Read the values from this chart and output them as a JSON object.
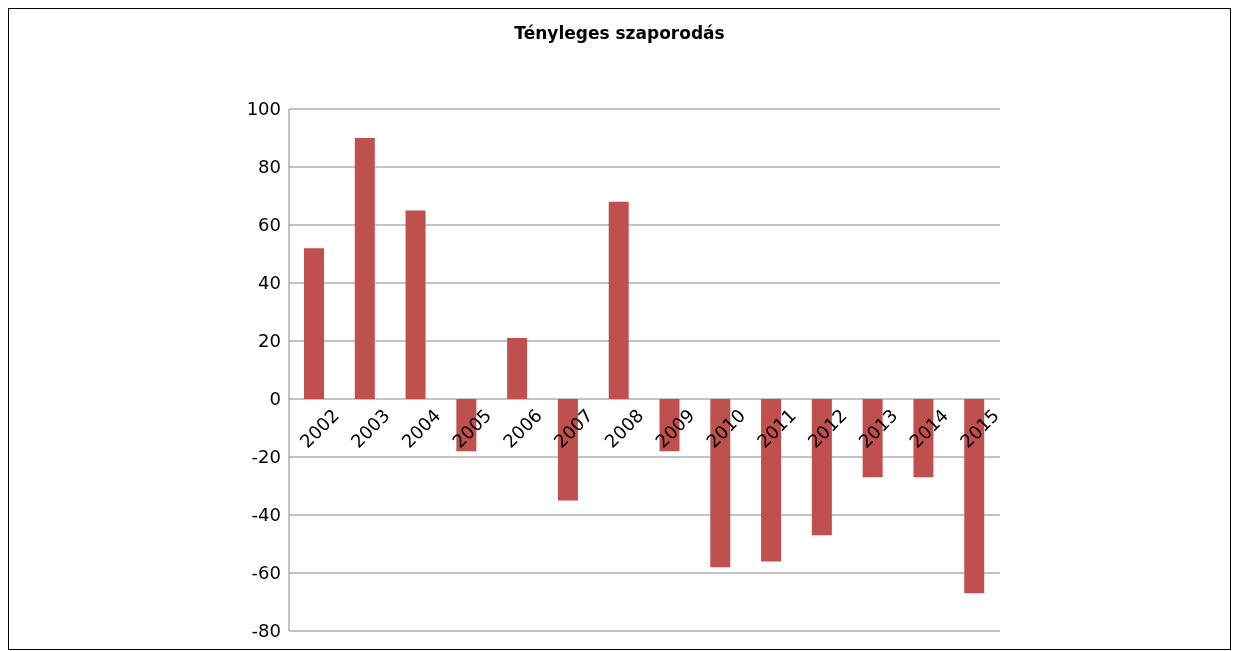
{
  "chart_data": {
    "type": "bar",
    "title": "Tényleges szaporodás",
    "categories": [
      "2002",
      "2003",
      "2004",
      "2005",
      "2006",
      "2007",
      "2008",
      "2009",
      "2010",
      "2011",
      "2012",
      "2013",
      "2014",
      "2015"
    ],
    "values": [
      52,
      90,
      65,
      -18,
      21,
      -35,
      68,
      -18,
      -58,
      -56,
      -47,
      -27,
      -27,
      -67
    ],
    "color": "#c0504d",
    "ylim": [
      -80,
      100
    ],
    "yticks": [
      -80,
      -60,
      -40,
      -20,
      0,
      20,
      40,
      60,
      80,
      100
    ],
    "grid": "y"
  }
}
